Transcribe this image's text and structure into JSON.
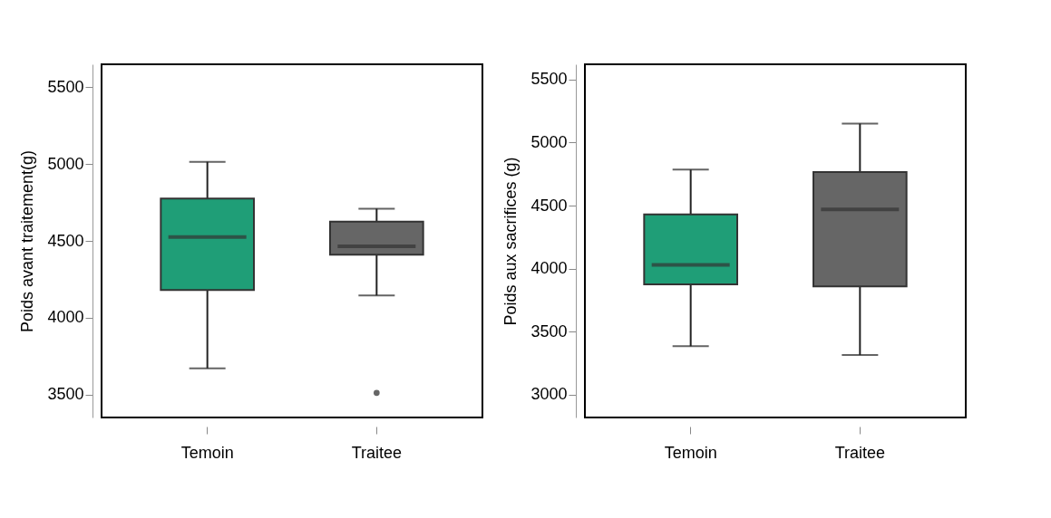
{
  "chart_data": [
    {
      "type": "box",
      "ylabel": "Poids avant traitement(g)",
      "categories": [
        "Temoin",
        "Traitee"
      ],
      "colors": [
        "#1f9e77",
        "#666666"
      ],
      "boxes": [
        {
          "low": 3670,
          "q1": 4180,
          "median": 4525,
          "q3": 4775,
          "high": 5015
        },
        {
          "low": 4145,
          "q1": 4410,
          "median": 4465,
          "q3": 4625,
          "high": 4710,
          "outliers": [
            3510
          ]
        }
      ],
      "ylim": [
        3350,
        5650
      ],
      "yticks": [
        3500,
        4000,
        4500,
        5000,
        5500
      ],
      "grid": false
    },
    {
      "type": "box",
      "ylabel": "Poids aux sacrifices  (g)",
      "categories": [
        "Temoin",
        "Traitee"
      ],
      "colors": [
        "#1f9e77",
        "#666666"
      ],
      "boxes": [
        {
          "low": 3385,
          "q1": 3875,
          "median": 4030,
          "q3": 4430,
          "high": 4785
        },
        {
          "low": 3315,
          "q1": 3860,
          "median": 4470,
          "q3": 4765,
          "high": 5150
        }
      ],
      "ylim": [
        2820,
        5620
      ],
      "yticks": [
        3000,
        3500,
        4000,
        4500,
        5000,
        5500
      ],
      "grid": false
    }
  ]
}
